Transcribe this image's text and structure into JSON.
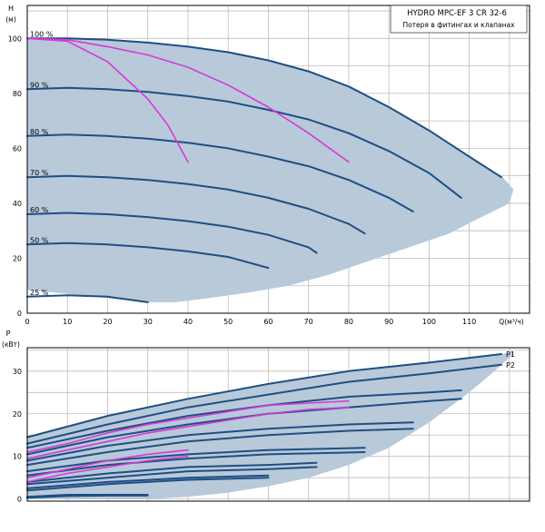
{
  "colors": {
    "area_fill": "#b8c9da",
    "curve": "#1e4f82",
    "loss": "#d63ad6",
    "grid": "#bdbdbd",
    "frame": "#000000",
    "text": "#000000"
  },
  "chart_data": [
    {
      "type": "line",
      "title": "HYDRO MPC-EF 3 CR 32-6",
      "subtitle": "Потеря в фитингах и клапанах",
      "xlabel": "Q(м³/ч)",
      "ylabel": "H",
      "yunit": "(м)",
      "xlim": [
        0,
        125
      ],
      "ylim": [
        0,
        112
      ],
      "xticks": [
        0,
        10,
        20,
        30,
        40,
        50,
        60,
        70,
        80,
        90,
        100,
        110
      ],
      "yticks": [
        0,
        20,
        40,
        60,
        80,
        100
      ],
      "grid": true,
      "envelope": [
        [
          0,
          100
        ],
        [
          10,
          100
        ],
        [
          20,
          99.5
        ],
        [
          30,
          98.5
        ],
        [
          40,
          97
        ],
        [
          50,
          95
        ],
        [
          60,
          92
        ],
        [
          70,
          88
        ],
        [
          80,
          82.5
        ],
        [
          90,
          75
        ],
        [
          100,
          66.5
        ],
        [
          110,
          57
        ],
        [
          118,
          50
        ],
        [
          121,
          45
        ],
        [
          120,
          40
        ],
        [
          113,
          35
        ],
        [
          105,
          29
        ],
        [
          95,
          24
        ],
        [
          85,
          19
        ],
        [
          75,
          14
        ],
        [
          65,
          10
        ],
        [
          55,
          7.5
        ],
        [
          45,
          5.5
        ],
        [
          37,
          4
        ],
        [
          30,
          4
        ],
        [
          30,
          4
        ],
        [
          20,
          5.5
        ],
        [
          10,
          7
        ],
        [
          0,
          8.5
        ]
      ],
      "series": [
        {
          "name": "100 %",
          "x": [
            0,
            10,
            20,
            30,
            40,
            50,
            60,
            70,
            80,
            90,
            100,
            110,
            118
          ],
          "y": [
            100,
            100,
            99.5,
            98.5,
            97,
            95,
            92,
            88,
            82.5,
            75,
            66.5,
            57,
            49.5
          ]
        },
        {
          "name": "90 %",
          "x": [
            0,
            10,
            20,
            30,
            40,
            50,
            60,
            70,
            80,
            90,
            100,
            108
          ],
          "y": [
            81.5,
            82,
            81.5,
            80.5,
            79,
            77,
            74,
            70.5,
            65.5,
            59,
            51,
            42
          ]
        },
        {
          "name": "80 %",
          "x": [
            0,
            10,
            20,
            30,
            40,
            50,
            60,
            70,
            80,
            90,
            96
          ],
          "y": [
            64.5,
            65,
            64.5,
            63.5,
            62,
            60,
            57,
            53.5,
            48.5,
            42,
            37
          ]
        },
        {
          "name": "70 %",
          "x": [
            0,
            10,
            20,
            30,
            40,
            50,
            60,
            70,
            80,
            84
          ],
          "y": [
            49.5,
            50,
            49.5,
            48.5,
            47,
            45,
            42,
            38,
            32.5,
            29
          ]
        },
        {
          "name": "60 %",
          "x": [
            0,
            10,
            20,
            30,
            40,
            50,
            60,
            70,
            72
          ],
          "y": [
            36,
            36.5,
            36,
            35,
            33.5,
            31.5,
            28.5,
            24,
            22
          ]
        },
        {
          "name": "50 %",
          "x": [
            0,
            10,
            20,
            30,
            40,
            50,
            60
          ],
          "y": [
            25,
            25.5,
            25,
            24,
            22.5,
            20.5,
            16.5
          ]
        },
        {
          "name": "25 %",
          "x": [
            0,
            10,
            20,
            30
          ],
          "y": [
            6,
            6.5,
            6,
            4
          ]
        }
      ],
      "loss_curves": [
        {
          "x": [
            0,
            10,
            20,
            30,
            35,
            40
          ],
          "y": [
            100,
            99,
            91.5,
            78,
            68.5,
            55
          ]
        },
        {
          "x": [
            0,
            10,
            20,
            30,
            40,
            50,
            60,
            70,
            80
          ],
          "y": [
            100,
            99.5,
            97,
            94,
            89.5,
            83,
            75,
            65.5,
            55
          ]
        }
      ]
    },
    {
      "type": "line",
      "xlabel": "",
      "ylabel": "P",
      "yunit": "(кВт)",
      "xlim": [
        0,
        125
      ],
      "ylim": [
        -0.5,
        35.5
      ],
      "yticks": [
        0,
        10,
        20,
        30
      ],
      "grid": true,
      "envelope": [
        [
          0,
          14.5
        ],
        [
          20,
          19.5
        ],
        [
          40,
          23.5
        ],
        [
          60,
          27
        ],
        [
          80,
          30
        ],
        [
          100,
          32
        ],
        [
          118,
          34
        ],
        [
          121,
          34.5
        ],
        [
          121,
          34
        ],
        [
          115,
          29
        ],
        [
          110,
          25
        ],
        [
          100,
          18
        ],
        [
          90,
          12
        ],
        [
          80,
          8
        ],
        [
          70,
          5
        ],
        [
          60,
          3
        ],
        [
          50,
          1.5
        ],
        [
          40,
          0.5
        ],
        [
          30,
          0
        ],
        [
          0,
          0
        ]
      ],
      "series": [
        {
          "name": "P1",
          "x": [
            0,
            20,
            40,
            60,
            80,
            100,
            118
          ],
          "y": [
            14.5,
            19.5,
            23.5,
            27,
            30,
            32,
            34
          ]
        },
        {
          "name": "P2",
          "x": [
            0,
            20,
            40,
            60,
            80,
            100,
            118
          ],
          "y": [
            13,
            17.5,
            21.5,
            24.5,
            27.5,
            29.5,
            31.5
          ]
        },
        {
          "name": "",
          "x": [
            0,
            20,
            40,
            60,
            80,
            100,
            108
          ],
          "y": [
            12,
            16,
            19.5,
            22,
            24,
            25,
            25.5
          ]
        },
        {
          "name": "",
          "x": [
            0,
            20,
            40,
            60,
            80,
            100,
            108
          ],
          "y": [
            10.5,
            14.5,
            17.5,
            20,
            21.5,
            23,
            23.5
          ]
        },
        {
          "name": "",
          "x": [
            0,
            20,
            40,
            60,
            80,
            96
          ],
          "y": [
            9,
            12.5,
            15,
            16.5,
            17.5,
            18
          ]
        },
        {
          "name": "",
          "x": [
            0,
            20,
            40,
            60,
            80,
            96
          ],
          "y": [
            8,
            11,
            13.5,
            15,
            16,
            16.5
          ]
        },
        {
          "name": "",
          "x": [
            0,
            20,
            40,
            60,
            84
          ],
          "y": [
            6.5,
            9,
            10.5,
            11.5,
            12
          ]
        },
        {
          "name": "",
          "x": [
            0,
            20,
            40,
            60,
            84
          ],
          "y": [
            5.5,
            8,
            9.5,
            10.5,
            11
          ]
        },
        {
          "name": "",
          "x": [
            0,
            20,
            40,
            60,
            72
          ],
          "y": [
            4,
            6,
            7.5,
            8,
            8.5
          ]
        },
        {
          "name": "",
          "x": [
            0,
            20,
            40,
            60,
            72
          ],
          "y": [
            3.5,
            5,
            6.5,
            7,
            7.5
          ]
        },
        {
          "name": "",
          "x": [
            0,
            20,
            40,
            60
          ],
          "y": [
            2.5,
            4,
            5,
            5.5
          ]
        },
        {
          "name": "",
          "x": [
            0,
            20,
            40,
            60
          ],
          "y": [
            2,
            3.5,
            4.5,
            5
          ]
        },
        {
          "name": "",
          "x": [
            0,
            10,
            20,
            30
          ],
          "y": [
            0.5,
            1,
            1,
            1
          ]
        },
        {
          "name": "",
          "x": [
            0,
            10,
            20,
            30
          ],
          "y": [
            0.3,
            0.7,
            0.8,
            0.8
          ]
        }
      ],
      "loss_curves": [
        {
          "x": [
            0,
            10,
            20,
            30,
            40,
            50,
            60,
            70,
            80
          ],
          "y": [
            11,
            13,
            15.5,
            17.5,
            19,
            20.5,
            22,
            22.5,
            23
          ]
        },
        {
          "x": [
            0,
            10,
            20,
            30,
            40,
            50,
            60,
            70,
            80
          ],
          "y": [
            9.5,
            11.5,
            13.5,
            15.5,
            17,
            18.5,
            20,
            21,
            21.5
          ]
        },
        {
          "x": [
            0,
            10,
            20,
            30,
            40
          ],
          "y": [
            5,
            7,
            9,
            10.5,
            11.5
          ]
        },
        {
          "x": [
            0,
            10,
            20,
            30,
            40
          ],
          "y": [
            4,
            6,
            7.5,
            9,
            10
          ]
        }
      ]
    }
  ]
}
